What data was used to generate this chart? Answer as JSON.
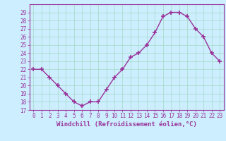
{
  "x": [
    0,
    1,
    2,
    3,
    4,
    5,
    6,
    7,
    8,
    9,
    10,
    11,
    12,
    13,
    14,
    15,
    16,
    17,
    18,
    19,
    20,
    21,
    22,
    23
  ],
  "y": [
    22,
    22,
    21,
    20,
    19,
    18,
    17.5,
    18,
    18,
    19.5,
    21,
    22,
    23.5,
    24,
    25,
    26.5,
    28.5,
    29,
    29,
    28.5,
    27,
    26,
    24,
    23
  ],
  "line_color": "#993399",
  "marker": "+",
  "marker_size": 4,
  "marker_linewidth": 1.2,
  "background_color": "#cceeff",
  "grid_color": "#aaddcc",
  "ylim": [
    17,
    30
  ],
  "xlim_min": -0.5,
  "xlim_max": 23.5,
  "yticks": [
    17,
    18,
    19,
    20,
    21,
    22,
    23,
    24,
    25,
    26,
    27,
    28,
    29
  ],
  "xticks": [
    0,
    1,
    2,
    3,
    4,
    5,
    6,
    7,
    8,
    9,
    10,
    11,
    12,
    13,
    14,
    15,
    16,
    17,
    18,
    19,
    20,
    21,
    22,
    23
  ],
  "tick_color": "#993399",
  "xlabel": "Windchill (Refroidissement éolien,°C)",
  "label_fontsize": 6.5,
  "tick_fontsize": 5.5,
  "line_width": 1.0,
  "spine_color": "#993399"
}
